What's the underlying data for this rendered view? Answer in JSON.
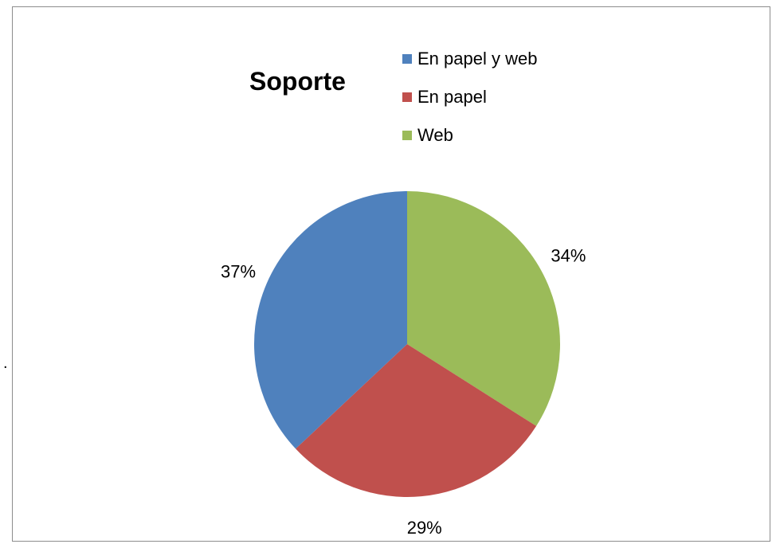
{
  "chart_data": {
    "type": "pie",
    "title": "Soporte",
    "categories": [
      "En papel y web",
      "En papel",
      "Web"
    ],
    "values": [
      37,
      29,
      34
    ],
    "labels": [
      "37%",
      "29%",
      "34%"
    ],
    "colors": [
      "#4f81bd",
      "#c0504d",
      "#9bbb59"
    ],
    "legend_position": "top-right"
  },
  "stray_mark": "."
}
